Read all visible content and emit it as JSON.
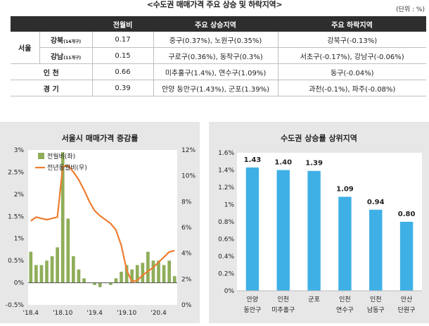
{
  "header": {
    "title": "<수도권 매매가격 주요 상승 및 하락지역>",
    "unit": "(단위 : %)"
  },
  "table": {
    "columns": [
      "전월비",
      "주요 상승지역",
      "주요 하락지역"
    ],
    "seoul_label": "서울",
    "rows": [
      {
        "region": "강북",
        "note": "(14개구)",
        "mom": "0.17",
        "rising": "중구(0.37%), 노원구(0.35%)",
        "falling": "강북구(-0.13%)"
      },
      {
        "region": "강남",
        "note": "(11개구)",
        "mom": "0.15",
        "rising": "구로구(0.36%), 동작구(0.3%)",
        "falling": "서초구(-0.17%), 강남구(-0.06%)"
      },
      {
        "region": "인 천",
        "mom": "0.66",
        "rising": "미추홀구(1.4%), 연수구(1.09%)",
        "falling": "동구(-0.04%)"
      },
      {
        "region": "경 기",
        "mom": "0.39",
        "rising": "안양 동안구(1.43%), 군포(1.39%)",
        "falling": "과천(-0.1%), 파주(-0.08%)"
      }
    ]
  },
  "chart_data": [
    {
      "type": "bar",
      "title": "서울시 매매가격 증감률",
      "x_tick_labels": [
        "'18.4",
        "'18.10",
        "'19.4",
        "'19.10",
        "'20.4"
      ],
      "series": [
        {
          "name": "전월비(좌)",
          "axis": "left",
          "type": "bar",
          "color": "#8fad5a",
          "values": [
            0.7,
            0.4,
            0.4,
            0.5,
            0.6,
            0.8,
            2.95,
            1.45,
            0.6,
            0.3,
            0.1,
            0.0,
            -0.05,
            -0.1,
            0.0,
            -0.05,
            0.1,
            0.25,
            0.4,
            0.3,
            0.4,
            0.45,
            0.7,
            0.5,
            0.5,
            0.4,
            0.5,
            0.15
          ]
        },
        {
          "name": "전년동월비(우)",
          "axis": "right",
          "type": "line",
          "color": "#ed7d31",
          "values": [
            6.5,
            6.8,
            6.7,
            6.6,
            6.7,
            6.8,
            10.7,
            10.8,
            10.3,
            9.7,
            8.9,
            8.0,
            7.3,
            6.9,
            6.6,
            6.3,
            5.8,
            4.6,
            2.7,
            1.8,
            1.9,
            2.3,
            2.6,
            2.9,
            3.3,
            3.7,
            4.1,
            4.2
          ]
        }
      ],
      "ylim_left": [
        -0.5,
        3.0
      ],
      "yticks_left": [
        "-0.5%",
        "0%",
        "0.5%",
        "1%",
        "1.5%",
        "2%",
        "2.5%",
        "3%"
      ],
      "ylim_right": [
        0,
        12
      ],
      "yticks_right": [
        "0%",
        "2%",
        "4%",
        "6%",
        "8%",
        "10%",
        "12%"
      ],
      "legend": "top-left"
    },
    {
      "type": "bar",
      "title": "수도권 상승률 상위지역",
      "categories": [
        [
          "안양",
          "동안구"
        ],
        [
          "인천",
          "미추홀구"
        ],
        [
          "군포",
          ""
        ],
        [
          "인천",
          "연수구"
        ],
        [
          "인천",
          "남동구"
        ],
        [
          "안산",
          "단원구"
        ]
      ],
      "values": [
        1.43,
        1.4,
        1.39,
        1.09,
        0.94,
        0.8
      ],
      "value_labels": [
        "1.43",
        "1.40",
        "1.39",
        "1.09",
        "0.94",
        "0.80"
      ],
      "color": "#3fb0e6",
      "ylim": [
        0,
        1.6
      ],
      "yticks": [
        "0%",
        "0.2%",
        "0.4%",
        "0.6%",
        "0.8%",
        "1%",
        "1.2%",
        "1.4%",
        "1.6%"
      ]
    }
  ]
}
